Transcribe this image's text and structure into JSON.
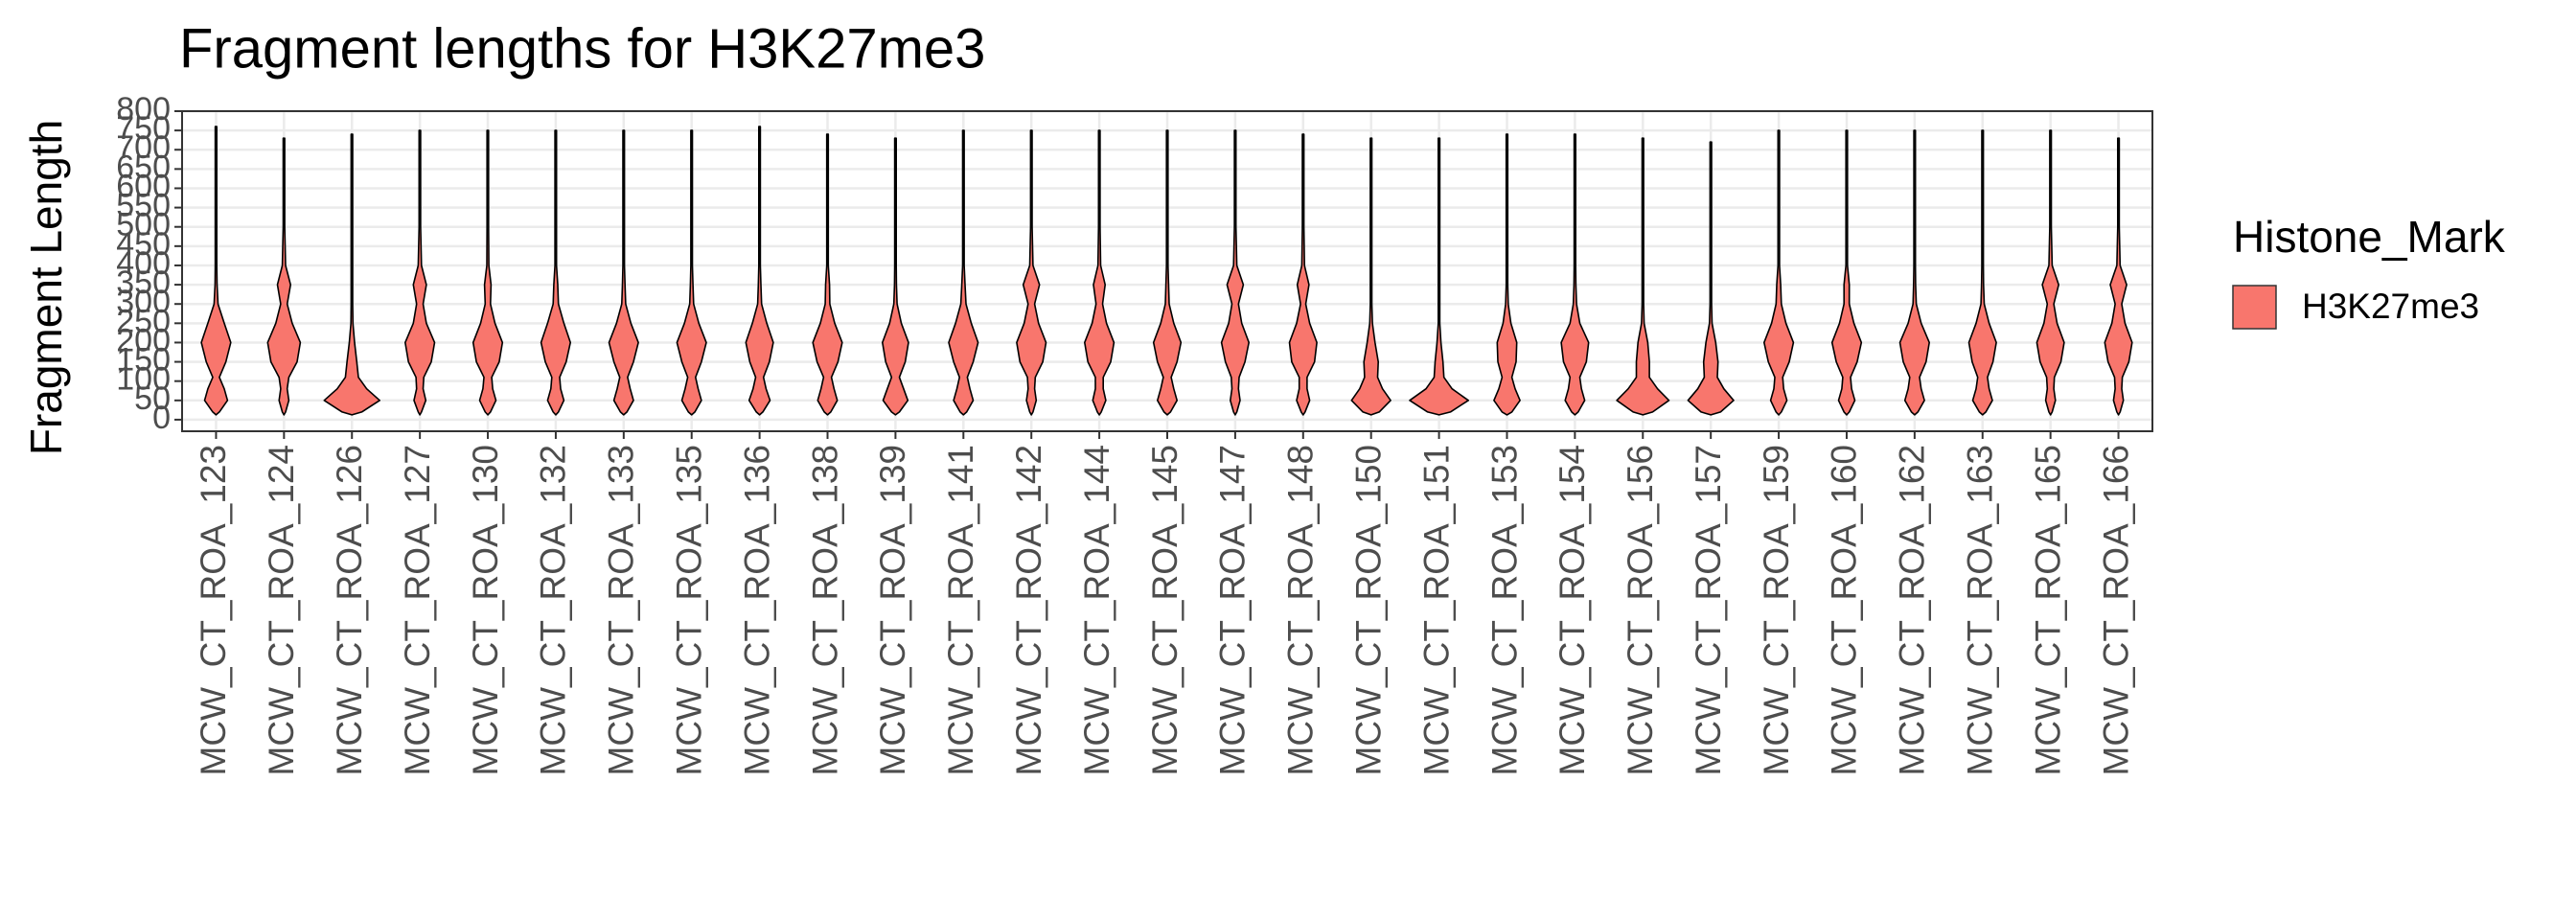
{
  "chart_data": {
    "type": "violin",
    "title": "Fragment lengths for H3K27me3",
    "y_label": "Fragment Length",
    "legend_title": "Histone_Mark",
    "series": [
      {
        "name": "H3K27me3",
        "color": "#F8766D"
      }
    ],
    "categories": [
      "MCW_CT_ROA_123",
      "MCW_CT_ROA_124",
      "MCW_CT_ROA_126",
      "MCW_CT_ROA_127",
      "MCW_CT_ROA_130",
      "MCW_CT_ROA_132",
      "MCW_CT_ROA_133",
      "MCW_CT_ROA_135",
      "MCW_CT_ROA_136",
      "MCW_CT_ROA_138",
      "MCW_CT_ROA_139",
      "MCW_CT_ROA_141",
      "MCW_CT_ROA_142",
      "MCW_CT_ROA_144",
      "MCW_CT_ROA_145",
      "MCW_CT_ROA_147",
      "MCW_CT_ROA_148",
      "MCW_CT_ROA_150",
      "MCW_CT_ROA_151",
      "MCW_CT_ROA_153",
      "MCW_CT_ROA_154",
      "MCW_CT_ROA_156",
      "MCW_CT_ROA_157",
      "MCW_CT_ROA_159",
      "MCW_CT_ROA_160",
      "MCW_CT_ROA_162",
      "MCW_CT_ROA_163",
      "MCW_CT_ROA_165",
      "MCW_CT_ROA_166"
    ],
    "density_y": [
      20,
      50,
      80,
      110,
      150,
      200,
      250,
      300,
      350,
      400,
      500
    ],
    "violins": [
      {
        "max": 760,
        "density": [
          0.1,
          0.35,
          0.25,
          0.1,
          0.3,
          0.45,
          0.25,
          0.06,
          0.03,
          0.02,
          0.01
        ]
      },
      {
        "max": 730,
        "density": [
          0.05,
          0.15,
          0.1,
          0.15,
          0.4,
          0.5,
          0.25,
          0.1,
          0.2,
          0.05,
          0.01
        ]
      },
      {
        "max": 740,
        "density": [
          0.3,
          0.85,
          0.45,
          0.2,
          0.15,
          0.08,
          0.03,
          0.01,
          0.01,
          0.005,
          0.005
        ]
      },
      {
        "max": 750,
        "density": [
          0.05,
          0.18,
          0.1,
          0.12,
          0.35,
          0.45,
          0.2,
          0.1,
          0.2,
          0.05,
          0.01
        ]
      },
      {
        "max": 750,
        "density": [
          0.08,
          0.25,
          0.15,
          0.12,
          0.35,
          0.45,
          0.22,
          0.08,
          0.1,
          0.03,
          0.01
        ]
      },
      {
        "max": 750,
        "density": [
          0.08,
          0.25,
          0.15,
          0.12,
          0.32,
          0.45,
          0.25,
          0.08,
          0.06,
          0.02,
          0.01
        ]
      },
      {
        "max": 750,
        "density": [
          0.1,
          0.3,
          0.2,
          0.12,
          0.3,
          0.45,
          0.22,
          0.06,
          0.04,
          0.02,
          0.01
        ]
      },
      {
        "max": 750,
        "density": [
          0.1,
          0.3,
          0.2,
          0.12,
          0.3,
          0.45,
          0.22,
          0.06,
          0.04,
          0.02,
          0.01
        ]
      },
      {
        "max": 760,
        "density": [
          0.1,
          0.32,
          0.2,
          0.12,
          0.3,
          0.42,
          0.22,
          0.06,
          0.04,
          0.02,
          0.01
        ]
      },
      {
        "max": 740,
        "density": [
          0.1,
          0.3,
          0.2,
          0.12,
          0.32,
          0.45,
          0.22,
          0.07,
          0.06,
          0.02,
          0.01
        ]
      },
      {
        "max": 730,
        "density": [
          0.12,
          0.38,
          0.25,
          0.12,
          0.3,
          0.4,
          0.18,
          0.05,
          0.03,
          0.02,
          0.01
        ]
      },
      {
        "max": 750,
        "density": [
          0.1,
          0.3,
          0.2,
          0.12,
          0.3,
          0.45,
          0.24,
          0.08,
          0.05,
          0.02,
          0.01
        ]
      },
      {
        "max": 750,
        "density": [
          0.05,
          0.15,
          0.1,
          0.12,
          0.35,
          0.45,
          0.22,
          0.1,
          0.25,
          0.05,
          0.01
        ]
      },
      {
        "max": 750,
        "density": [
          0.06,
          0.2,
          0.12,
          0.12,
          0.35,
          0.45,
          0.22,
          0.1,
          0.18,
          0.04,
          0.01
        ]
      },
      {
        "max": 750,
        "density": [
          0.1,
          0.3,
          0.2,
          0.12,
          0.3,
          0.42,
          0.2,
          0.06,
          0.04,
          0.02,
          0.01
        ]
      },
      {
        "max": 750,
        "density": [
          0.05,
          0.15,
          0.1,
          0.12,
          0.3,
          0.42,
          0.2,
          0.1,
          0.25,
          0.05,
          0.01
        ]
      },
      {
        "max": 740,
        "density": [
          0.06,
          0.2,
          0.12,
          0.12,
          0.35,
          0.42,
          0.2,
          0.08,
          0.18,
          0.04,
          0.01
        ]
      },
      {
        "max": 730,
        "density": [
          0.25,
          0.6,
          0.35,
          0.2,
          0.22,
          0.12,
          0.04,
          0.01,
          0.01,
          0.005,
          0.005
        ]
      },
      {
        "max": 730,
        "density": [
          0.35,
          0.9,
          0.4,
          0.15,
          0.12,
          0.06,
          0.02,
          0.01,
          0.01,
          0.005,
          0.005
        ]
      },
      {
        "max": 740,
        "density": [
          0.15,
          0.4,
          0.25,
          0.15,
          0.28,
          0.3,
          0.12,
          0.04,
          0.02,
          0.01,
          0.005
        ]
      },
      {
        "max": 740,
        "density": [
          0.1,
          0.3,
          0.2,
          0.15,
          0.35,
          0.42,
          0.15,
          0.05,
          0.03,
          0.01,
          0.005
        ]
      },
      {
        "max": 730,
        "density": [
          0.3,
          0.8,
          0.45,
          0.2,
          0.2,
          0.15,
          0.04,
          0.01,
          0.01,
          0.005,
          0.005
        ]
      },
      {
        "max": 720,
        "density": [
          0.3,
          0.7,
          0.4,
          0.2,
          0.22,
          0.15,
          0.04,
          0.01,
          0.01,
          0.005,
          0.005
        ]
      },
      {
        "max": 750,
        "density": [
          0.08,
          0.25,
          0.15,
          0.12,
          0.32,
          0.45,
          0.22,
          0.08,
          0.06,
          0.02,
          0.01
        ]
      },
      {
        "max": 750,
        "density": [
          0.08,
          0.25,
          0.15,
          0.12,
          0.32,
          0.45,
          0.22,
          0.08,
          0.08,
          0.02,
          0.01
        ]
      },
      {
        "max": 750,
        "density": [
          0.1,
          0.3,
          0.2,
          0.15,
          0.35,
          0.45,
          0.2,
          0.05,
          0.03,
          0.01,
          0.005
        ]
      },
      {
        "max": 750,
        "density": [
          0.1,
          0.3,
          0.2,
          0.15,
          0.32,
          0.42,
          0.2,
          0.05,
          0.03,
          0.01,
          0.005
        ]
      },
      {
        "max": 750,
        "density": [
          0.05,
          0.15,
          0.1,
          0.12,
          0.32,
          0.42,
          0.2,
          0.1,
          0.25,
          0.05,
          0.01
        ]
      },
      {
        "max": 730,
        "density": [
          0.05,
          0.15,
          0.1,
          0.12,
          0.32,
          0.42,
          0.2,
          0.1,
          0.25,
          0.05,
          0.01
        ]
      }
    ],
    "ylim": [
      -30,
      800
    ],
    "yticks": [
      0,
      50,
      100,
      150,
      200,
      250,
      300,
      350,
      400,
      450,
      500,
      550,
      600,
      650,
      700,
      750,
      800
    ],
    "grid": true
  }
}
